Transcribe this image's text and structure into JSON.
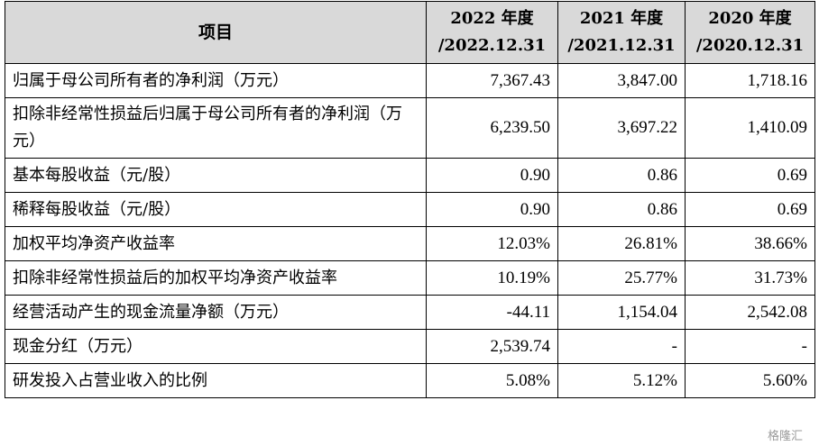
{
  "header": {
    "item": "项目",
    "columns": [
      {
        "year": "2022 年度",
        "date": "/2022.12.31"
      },
      {
        "year": "2021 年度",
        "date": "/2021.12.31"
      },
      {
        "year": "2020 年度",
        "date": "/2020.12.31"
      }
    ]
  },
  "rows": [
    {
      "label": "归属于母公司所有者的净利润（万元）",
      "v2022": "7,367.43",
      "v2021": "3,847.00",
      "v2020": "1,718.16"
    },
    {
      "label": "扣除非经常性损益后归属于母公司所有者的净利润（万元）",
      "v2022": "6,239.50",
      "v2021": "3,697.22",
      "v2020": "1,410.09"
    },
    {
      "label": "基本每股收益（元/股）",
      "v2022": "0.90",
      "v2021": "0.86",
      "v2020": "0.69"
    },
    {
      "label": "稀释每股收益（元/股）",
      "v2022": "0.90",
      "v2021": "0.86",
      "v2020": "0.69"
    },
    {
      "label": "加权平均净资产收益率",
      "v2022": "12.03%",
      "v2021": "26.81%",
      "v2020": "38.66%"
    },
    {
      "label": "扣除非经常性损益后的加权平均净资产收益率",
      "v2022": "10.19%",
      "v2021": "25.77%",
      "v2020": "31.73%"
    },
    {
      "label": "经营活动产生的现金流量净额（万元）",
      "v2022": "-44.11",
      "v2021": "1,154.04",
      "v2020": "2,542.08"
    },
    {
      "label": "现金分红（万元）",
      "v2022": "2,539.74",
      "v2021": "-",
      "v2020": "-"
    },
    {
      "label": "研发投入占营业收入的比例",
      "v2022": "5.08%",
      "v2021": "5.12%",
      "v2020": "5.60%"
    }
  ],
  "watermark": "格隆汇"
}
